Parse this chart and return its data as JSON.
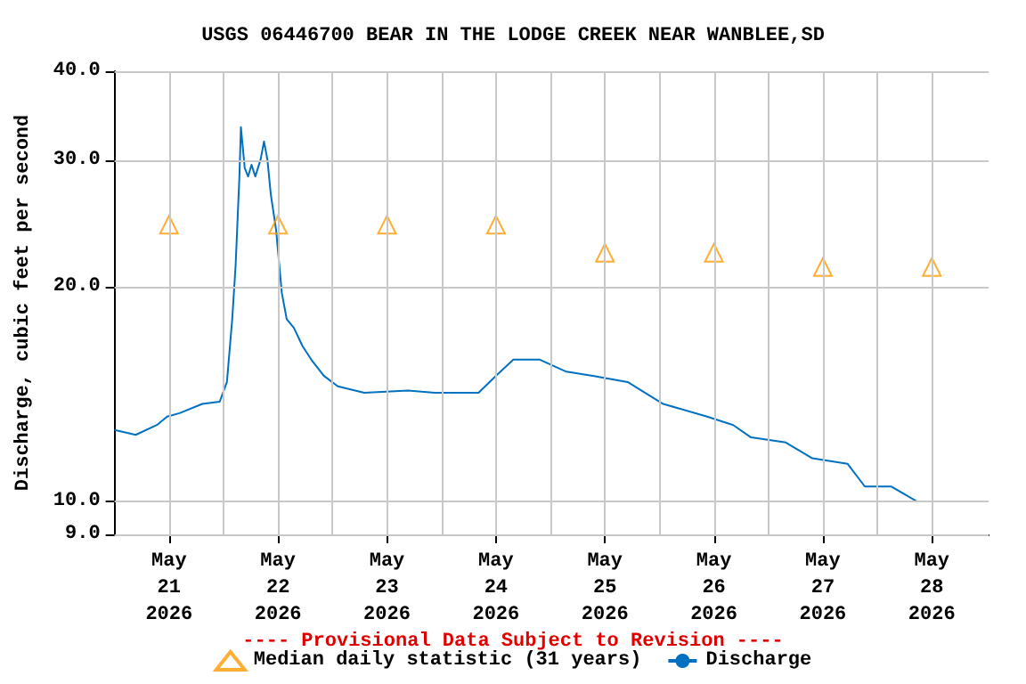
{
  "chart_data": {
    "type": "line",
    "title": "USGS 06446700 BEAR IN THE LODGE CREEK NEAR WANBLEE,SD",
    "ylabel": "Discharge, cubic feet per second",
    "annotations": [
      "---- Provisional Data Subject to Revision ----"
    ],
    "log": "y",
    "grid": true,
    "legend": "bottom",
    "xlim": [
      "2026-05-20T12:00",
      "2026-05-28T12:30"
    ],
    "xticks": [
      {
        "value": "2026-05-21",
        "label": "May\n21\n2026"
      },
      {
        "value": "2026-05-21T12:00",
        "label": null
      },
      {
        "value": "2026-05-22",
        "label": "May\n22\n2026"
      },
      {
        "value": "2026-05-22T12:00",
        "label": null
      },
      {
        "value": "2026-05-23",
        "label": "May\n23\n2026"
      },
      {
        "value": "2026-05-23T12:00",
        "label": null
      },
      {
        "value": "2026-05-24",
        "label": "May\n24\n2026"
      },
      {
        "value": "2026-05-24T12:00",
        "label": null
      },
      {
        "value": "2026-05-25",
        "label": "May\n25\n2026"
      },
      {
        "value": "2026-05-25T12:00",
        "label": null
      },
      {
        "value": "2026-05-26",
        "label": "May\n26\n2026"
      },
      {
        "value": "2026-05-26T12:00",
        "label": null
      },
      {
        "value": "2026-05-27",
        "label": "May\n27\n2026"
      },
      {
        "value": "2026-05-27T12:00",
        "label": null
      },
      {
        "value": "2026-05-28",
        "label": "May\n28\n2026"
      }
    ],
    "ylim": [
      9,
      40
    ],
    "yticks": [
      {
        "value": 9,
        "label": "9.0"
      },
      {
        "value": 10,
        "label": "10.0"
      },
      {
        "value": 20,
        "label": "20.0"
      },
      {
        "value": 30,
        "label": "30.0"
      },
      {
        "value": 40,
        "label": "40.0"
      }
    ],
    "series": [
      {
        "name": "Median daily statistic (31 years)",
        "type": "scatter",
        "marker": "triangle",
        "color": "#ff9900",
        "x": [
          "2026-05-21",
          "2026-05-22",
          "2026-05-23",
          "2026-05-24",
          "2026-05-25",
          "2026-05-26",
          "2026-05-27",
          "2026-05-28"
        ],
        "values": [
          24.4,
          24.4,
          24.4,
          24.4,
          22.3,
          22.3,
          21.3,
          21.3
        ]
      },
      {
        "name": "Discharge",
        "marker": "none",
        "color": "#0070c0",
        "x": [
          "2026-05-20T12:00",
          "2026-05-20T16:40",
          "2026-05-20T21:20",
          "2026-05-20T23:35",
          "2026-05-21T02:20",
          "2026-05-21T07:20",
          "2026-05-21T11:10",
          "2026-05-21T12:45",
          "2026-05-21T13:55",
          "2026-05-21T14:40",
          "2026-05-21T15:30",
          "2026-05-21T15:50",
          "2026-05-21T16:40",
          "2026-05-21T17:25",
          "2026-05-21T18:10",
          "2026-05-21T19:00",
          "2026-05-21T20:10",
          "2026-05-21T20:55",
          "2026-05-21T21:40",
          "2026-05-21T22:25",
          "2026-05-21T23:35",
          "2026-05-22T00:50",
          "2026-05-22T01:55",
          "2026-05-22T03:30",
          "2026-05-22T05:25",
          "2026-05-22T07:20",
          "2026-05-22T10:05",
          "2026-05-22T13:10",
          "2026-05-22T19:00",
          "2026-05-23T04:40",
          "2026-05-23T10:30",
          "2026-05-23T20:10",
          "2026-05-24T00:00",
          "2026-05-24T03:50",
          "2026-05-24T09:40",
          "2026-05-24T15:30",
          "2026-05-24T21:20",
          "2026-05-25T05:00",
          "2026-05-25T12:50",
          "2026-05-25T22:30",
          "2026-05-26T04:15",
          "2026-05-26T08:10",
          "2026-05-26T15:50",
          "2026-05-26T21:40",
          "2026-05-27T05:25",
          "2026-05-27T09:15",
          "2026-05-27T15:05",
          "2026-05-27T20:50"
        ],
        "values": [
          12.6,
          12.4,
          12.8,
          13.15,
          13.3,
          13.7,
          13.8,
          14.7,
          18.0,
          21.4,
          28.5,
          33.4,
          29.3,
          28.5,
          29.6,
          28.5,
          30.1,
          31.9,
          30.1,
          26.9,
          24.0,
          19.6,
          18.0,
          17.5,
          16.5,
          15.8,
          15.0,
          14.5,
          14.2,
          14.3,
          14.2,
          14.2,
          15.0,
          15.8,
          15.8,
          15.2,
          15.0,
          14.7,
          13.7,
          13.15,
          12.8,
          12.3,
          12.1,
          11.5,
          11.3,
          10.5,
          10.5,
          10.0
        ]
      }
    ]
  }
}
